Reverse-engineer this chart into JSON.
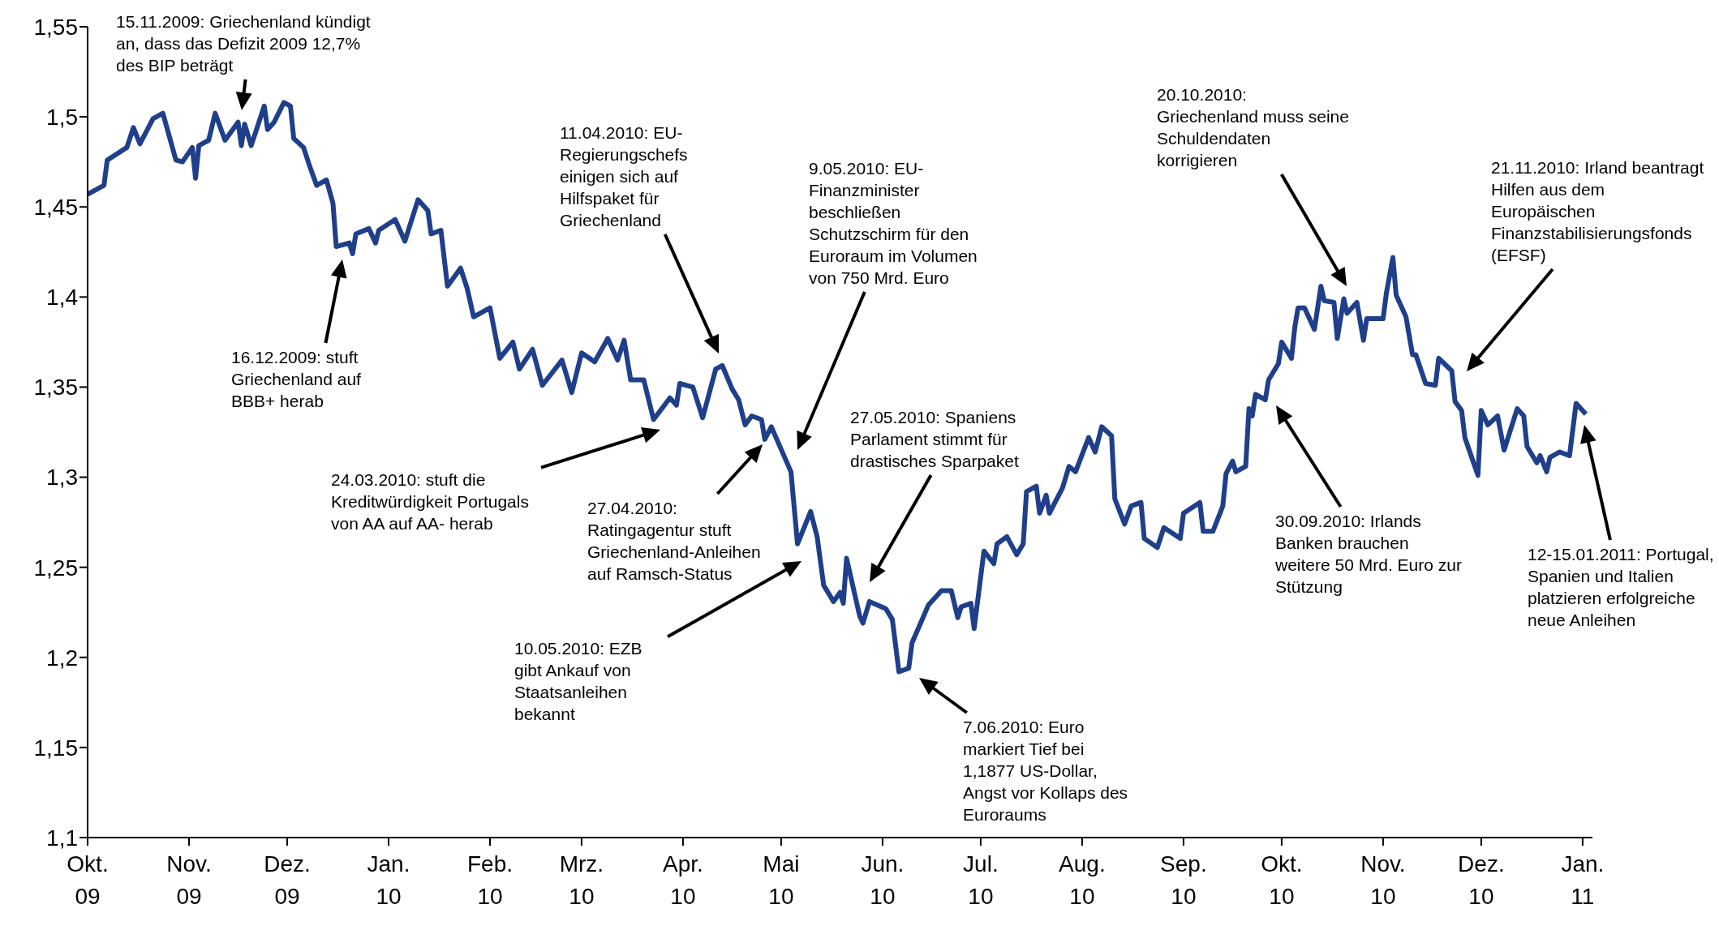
{
  "chart_data": {
    "type": "line",
    "color": "#1f3f8a",
    "x": [
      "2009-10-01",
      "2009-10-06",
      "2009-10-07",
      "2009-10-13",
      "2009-10-15",
      "2009-10-17",
      "2009-10-21",
      "2009-10-24",
      "2009-10-28",
      "2009-10-30",
      "2009-11-02",
      "2009-11-03",
      "2009-11-04",
      "2009-11-07",
      "2009-11-09",
      "2009-11-12",
      "2009-11-16",
      "2009-11-17",
      "2009-11-18",
      "2009-11-20",
      "2009-11-24",
      "2009-11-25",
      "2009-11-27",
      "2009-11-30",
      "2009-12-02",
      "2009-12-03",
      "2009-12-06",
      "2009-12-08",
      "2009-12-10",
      "2009-12-13",
      "2009-12-15",
      "2009-12-16",
      "2009-12-20",
      "2009-12-21",
      "2009-12-22",
      "2009-12-26",
      "2009-12-28",
      "2009-12-29",
      "2010-01-03",
      "2010-01-06",
      "2010-01-10",
      "2010-01-13",
      "2010-01-14",
      "2010-01-17",
      "2010-01-19",
      "2010-01-23",
      "2010-01-25",
      "2010-01-27",
      "2010-02-01",
      "2010-02-04",
      "2010-02-08",
      "2010-02-10",
      "2010-02-14",
      "2010-02-17",
      "2010-02-23",
      "2010-02-26",
      "2010-03-01",
      "2010-03-05",
      "2010-03-09",
      "2010-03-12",
      "2010-03-14",
      "2010-03-16",
      "2010-03-20",
      "2010-03-23",
      "2010-03-28",
      "2010-03-30",
      "2010-03-31",
      "2010-04-04",
      "2010-04-07",
      "2010-04-11",
      "2010-04-13",
      "2010-04-16",
      "2010-04-18",
      "2010-04-20",
      "2010-04-22",
      "2010-04-25",
      "2010-04-26",
      "2010-04-28",
      "2010-05-04",
      "2010-05-06",
      "2010-05-10",
      "2010-05-12",
      "2010-05-14",
      "2010-05-17",
      "2010-05-19",
      "2010-05-20",
      "2010-05-21",
      "2010-05-25",
      "2010-05-26",
      "2010-05-28",
      "2010-06-02",
      "2010-06-04",
      "2010-06-06",
      "2010-06-09",
      "2010-06-10",
      "2010-06-15",
      "2010-06-19",
      "2010-06-22",
      "2010-06-24",
      "2010-06-25",
      "2010-06-28",
      "2010-06-29",
      "2010-07-02",
      "2010-07-05",
      "2010-07-06",
      "2010-07-09",
      "2010-07-12",
      "2010-07-14",
      "2010-07-15",
      "2010-07-18",
      "2010-07-19",
      "2010-07-21",
      "2010-07-22",
      "2010-07-26",
      "2010-07-28",
      "2010-07-30",
      "2010-08-03",
      "2010-08-05",
      "2010-08-07",
      "2010-08-10",
      "2010-08-11",
      "2010-08-14",
      "2010-08-16",
      "2010-08-19",
      "2010-08-20",
      "2010-08-24",
      "2010-08-26",
      "2010-08-31",
      "2010-09-01",
      "2010-09-06",
      "2010-09-07",
      "2010-09-10",
      "2010-09-13",
      "2010-09-14",
      "2010-09-16",
      "2010-09-17",
      "2010-09-20",
      "2010-09-21",
      "2010-09-22",
      "2010-09-23",
      "2010-09-26",
      "2010-09-27",
      "2010-09-30",
      "2010-10-01",
      "2010-10-04",
      "2010-10-05",
      "2010-10-06",
      "2010-10-08",
      "2010-10-11",
      "2010-10-13",
      "2010-10-14",
      "2010-10-17",
      "2010-10-18",
      "2010-10-20",
      "2010-10-21",
      "2010-10-24",
      "2010-10-26",
      "2010-10-27",
      "2010-11-01",
      "2010-11-02",
      "2010-11-04",
      "2010-11-05",
      "2010-11-08",
      "2010-11-10",
      "2010-11-11",
      "2010-11-14",
      "2010-11-17",
      "2010-11-18",
      "2010-11-22",
      "2010-11-23",
      "2010-11-25",
      "2010-11-26",
      "2010-11-30",
      "2010-12-01",
      "2010-12-03",
      "2010-12-06",
      "2010-12-08",
      "2010-12-12",
      "2010-12-14",
      "2010-12-15",
      "2010-12-18",
      "2010-12-19",
      "2010-12-21",
      "2010-12-22",
      "2010-12-25",
      "2010-12-28",
      "2010-12-30",
      "2011-01-02"
    ],
    "values": [
      1.457,
      1.462,
      1.476,
      1.483,
      1.494,
      1.485,
      1.499,
      1.502,
      1.476,
      1.475,
      1.483,
      1.466,
      1.484,
      1.487,
      1.502,
      1.487,
      1.497,
      1.484,
      1.496,
      1.484,
      1.506,
      1.493,
      1.497,
      1.508,
      1.506,
      1.488,
      1.483,
      1.472,
      1.462,
      1.465,
      1.452,
      1.428,
      1.43,
      1.424,
      1.435,
      1.438,
      1.43,
      1.437,
      1.443,
      1.431,
      1.454,
      1.448,
      1.435,
      1.437,
      1.406,
      1.416,
      1.405,
      1.389,
      1.394,
      1.366,
      1.375,
      1.36,
      1.371,
      1.351,
      1.365,
      1.347,
      1.369,
      1.364,
      1.377,
      1.365,
      1.376,
      1.354,
      1.354,
      1.332,
      1.344,
      1.34,
      1.352,
      1.35,
      1.333,
      1.36,
      1.362,
      1.349,
      1.343,
      1.329,
      1.334,
      1.332,
      1.321,
      1.328,
      1.303,
      1.263,
      1.281,
      1.267,
      1.24,
      1.231,
      1.236,
      1.23,
      1.255,
      1.223,
      1.219,
      1.231,
      1.227,
      1.221,
      1.192,
      1.194,
      1.208,
      1.229,
      1.237,
      1.237,
      1.222,
      1.228,
      1.23,
      1.216,
      1.259,
      1.252,
      1.263,
      1.267,
      1.257,
      1.263,
      1.292,
      1.295,
      1.28,
      1.29,
      1.28,
      1.294,
      1.306,
      1.303,
      1.322,
      1.314,
      1.328,
      1.323,
      1.288,
      1.274,
      1.284,
      1.286,
      1.266,
      1.261,
      1.272,
      1.266,
      1.28,
      1.286,
      1.27,
      1.27,
      1.284,
      1.302,
      1.309,
      1.303,
      1.306,
      1.338,
      1.334,
      1.346,
      1.343,
      1.354,
      1.363,
      1.375,
      1.366,
      1.383,
      1.394,
      1.394,
      1.382,
      1.406,
      1.398,
      1.397,
      1.377,
      1.399,
      1.391,
      1.397,
      1.376,
      1.388,
      1.388,
      1.402,
      1.422,
      1.401,
      1.389,
      1.368,
      1.368,
      1.352,
      1.351,
      1.366,
      1.359,
      1.342,
      1.337,
      1.322,
      1.301,
      1.337,
      1.329,
      1.334,
      1.315,
      1.338,
      1.334,
      1.317,
      1.308,
      1.312,
      1.303,
      1.311,
      1.314,
      1.312,
      1.341,
      1.335
    ],
    "xlim": [
      "2009-10-01",
      "2011-01-04"
    ],
    "xticks": [
      {
        "value": "2009-10",
        "label": "Okt. 09"
      },
      {
        "value": "2009-11",
        "label": "Nov. 09"
      },
      {
        "value": "2009-12",
        "label": "Dez. 09"
      },
      {
        "value": "2010-01",
        "label": "Jan. 10"
      },
      {
        "value": "2010-02",
        "label": "Feb. 10"
      },
      {
        "value": "2010-03",
        "label": "Mrz. 10"
      },
      {
        "value": "2010-04",
        "label": "Apr. 10"
      },
      {
        "value": "2010-05",
        "label": "Mai 10"
      },
      {
        "value": "2010-06",
        "label": "Jun. 10"
      },
      {
        "value": "2010-07",
        "label": "Jul. 10"
      },
      {
        "value": "2010-08",
        "label": "Aug. 10"
      },
      {
        "value": "2010-09",
        "label": "Sep. 10"
      },
      {
        "value": "2010-10",
        "label": "Okt. 10"
      },
      {
        "value": "2010-11",
        "label": "Nov. 10"
      },
      {
        "value": "2010-12",
        "label": "Dez. 10"
      },
      {
        "value": "2011-01",
        "label": "Jan. 11"
      }
    ],
    "ylim": [
      1.1,
      1.55
    ],
    "yticks": [
      {
        "value": 1.1,
        "label": "1,1"
      },
      {
        "value": 1.15,
        "label": "1,15"
      },
      {
        "value": 1.2,
        "label": "1,2"
      },
      {
        "value": 1.25,
        "label": "1,25"
      },
      {
        "value": 1.3,
        "label": "1,3"
      },
      {
        "value": 1.35,
        "label": "1,35"
      },
      {
        "value": 1.4,
        "label": "1,4"
      },
      {
        "value": 1.45,
        "label": "1,45"
      },
      {
        "value": 1.5,
        "label": "1,5"
      },
      {
        "value": 1.55,
        "label": "1,55"
      }
    ],
    "annotations": [
      "15.11.2009: Griechenland kündigt an, dass das Defizit 2009 12,7% des BIP beträgt",
      "16.12.2009: stuft Griechenland auf BBB+ herab",
      "24.03.2010: stuft die Kreditwürdigkeit Portugals von AA auf AA- herab",
      "11.04.2010: EU-Regierungschefs einigen sich auf Hilfspaket für Griechenland",
      "9.05.2010: EU-Finanzminister beschließen Schutzschirm für den Euroraum im Volumen von 750 Mrd. Euro",
      "27.04.2010: Ratingagentur stuft Griechenland-Anleihen auf Ramsch-Status",
      "10.05.2010: EZB gibt Ankauf von Staatsanleihen bekannt",
      "27.05.2010: Spaniens Parlament stimmt für drastisches Sparpaket",
      "7.06.2010: Euro markiert Tief bei 1,1877 US-Dollar, Angst vor Kollaps des Euroraums",
      "20.10.2010: Griechenland muss seine Schuldendaten korrigieren",
      "21.11.2010: Irland beantragt Hilfen aus dem Europäischen Finanzstabilisierungsfonds (EFSF)",
      "30.09.2010: Irlands Banken brauchen weitere 50 Mrd. Euro zur Stützung",
      "12-15.01.2011: Portugal, Spanien und Italien platzieren erfolgreiche neue Anleihen"
    ]
  }
}
